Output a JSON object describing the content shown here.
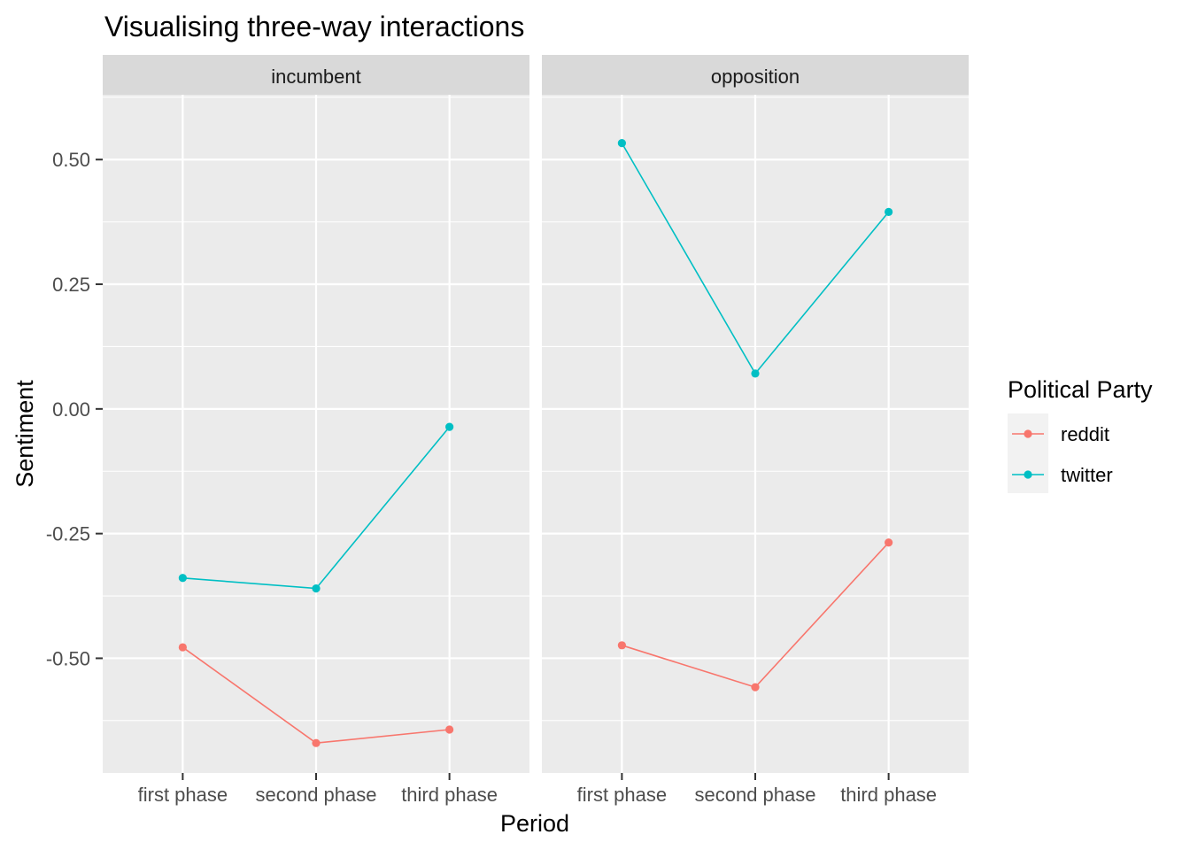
{
  "chart_data": {
    "type": "line",
    "title": "Visualising three-way interactions",
    "xlabel": "Period",
    "ylabel": "Sentiment",
    "categories": [
      "first phase",
      "second phase",
      "third phase"
    ],
    "ylim": [
      -0.73,
      0.63
    ],
    "y_ticks": [
      0.5,
      0.25,
      0.0,
      -0.25,
      -0.5
    ],
    "y_tick_labels": [
      "0.50",
      "0.25",
      "0.00",
      "-0.25",
      "-0.50"
    ],
    "grid": true,
    "legend": {
      "title": "Political Party",
      "position": "right",
      "entries": [
        "reddit",
        "twitter"
      ]
    },
    "colors": {
      "reddit": "#F8766D",
      "twitter": "#00BFC4"
    },
    "facets": [
      {
        "label": "incumbent",
        "series": [
          {
            "name": "reddit",
            "values": [
              -0.478,
              -0.67,
              -0.643
            ]
          },
          {
            "name": "twitter",
            "values": [
              -0.339,
              -0.36,
              -0.036
            ]
          }
        ]
      },
      {
        "label": "opposition",
        "series": [
          {
            "name": "reddit",
            "values": [
              -0.474,
              -0.558,
              -0.268
            ]
          },
          {
            "name": "twitter",
            "values": [
              0.533,
              0.071,
              0.395
            ]
          }
        ]
      }
    ]
  }
}
